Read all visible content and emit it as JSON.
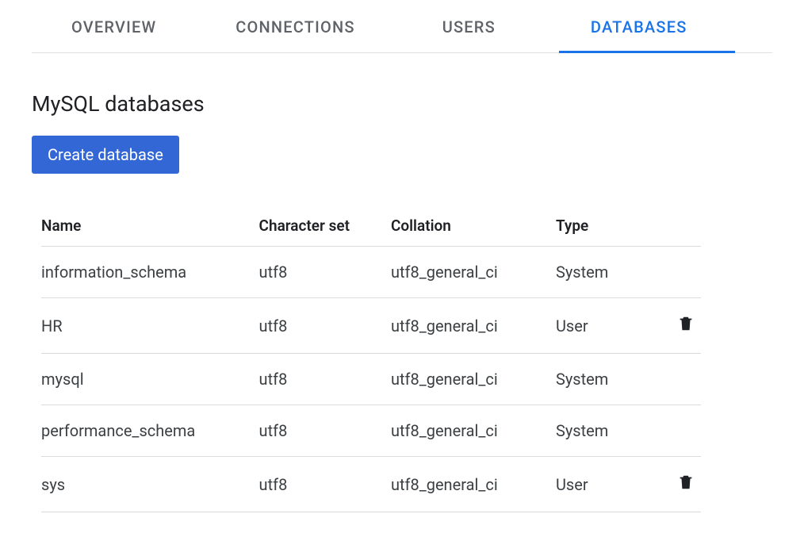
{
  "tabs": [
    {
      "label": "OVERVIEW",
      "active": false
    },
    {
      "label": "CONNECTIONS",
      "active": false
    },
    {
      "label": "USERS",
      "active": false
    },
    {
      "label": "DATABASES",
      "active": true
    }
  ],
  "section_title": "MySQL databases",
  "create_button_label": "Create database",
  "table": {
    "columns": {
      "name": "Name",
      "charset": "Character set",
      "collation": "Collation",
      "type": "Type"
    },
    "rows": [
      {
        "name": "information_schema",
        "charset": "utf8",
        "collation": "utf8_general_ci",
        "type": "System",
        "deletable": false
      },
      {
        "name": "HR",
        "charset": "utf8",
        "collation": "utf8_general_ci",
        "type": "User",
        "deletable": true
      },
      {
        "name": "mysql",
        "charset": "utf8",
        "collation": "utf8_general_ci",
        "type": "System",
        "deletable": false
      },
      {
        "name": "performance_schema",
        "charset": "utf8",
        "collation": "utf8_general_ci",
        "type": "System",
        "deletable": false
      },
      {
        "name": "sys",
        "charset": "utf8",
        "collation": "utf8_general_ci",
        "type": "User",
        "deletable": true
      }
    ]
  },
  "colors": {
    "accent": "#1a73e8",
    "button_bg": "#3367d6",
    "text_primary": "#202124",
    "text_secondary": "#5f6368",
    "border": "#dadce0",
    "tab_border": "#e0e0e0",
    "background": "#ffffff"
  }
}
